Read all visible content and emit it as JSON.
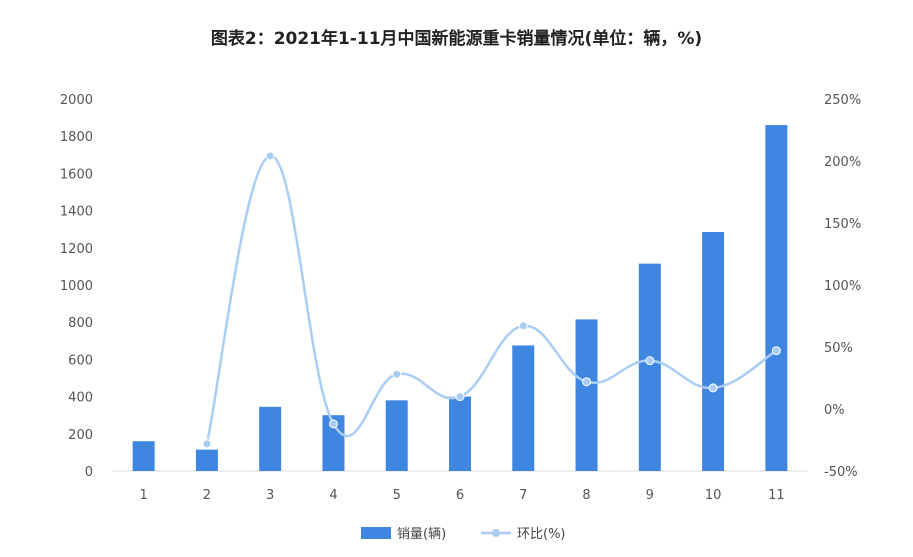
{
  "title": "图表2：2021年1-11月中国新能源重卡销量情况(单位：辆，%)",
  "chart_data": {
    "type": "bar",
    "title": "图表2：2021年1-11月中国新能源重卡销量情况(单位：辆，%)",
    "categories": [
      "1",
      "2",
      "3",
      "4",
      "5",
      "6",
      "7",
      "8",
      "9",
      "10",
      "11"
    ],
    "series": [
      {
        "name": "销量(辆)",
        "type": "bar",
        "axis": "left",
        "color": "#3f86e0",
        "values": [
          160,
          115,
          345,
          300,
          380,
          400,
          675,
          815,
          1115,
          1285,
          1860
        ]
      },
      {
        "name": "环比(%)",
        "type": "line",
        "axis": "right",
        "color": "#a9cdf5",
        "values": [
          null,
          -28,
          204,
          -12,
          28,
          10,
          67,
          22,
          39,
          17,
          47
        ]
      }
    ],
    "ylim": [
      0,
      2000
    ],
    "y_ticks": [
      "0",
      "200",
      "400",
      "600",
      "800",
      "1000",
      "1200",
      "1400",
      "1600",
      "1800",
      "2000"
    ],
    "y2lim": [
      -50,
      250
    ],
    "y2_ticks": [
      "-50%",
      "0%",
      "50%",
      "100%",
      "150%",
      "200%",
      "250%"
    ],
    "grid": false,
    "legend_position": "bottom"
  }
}
